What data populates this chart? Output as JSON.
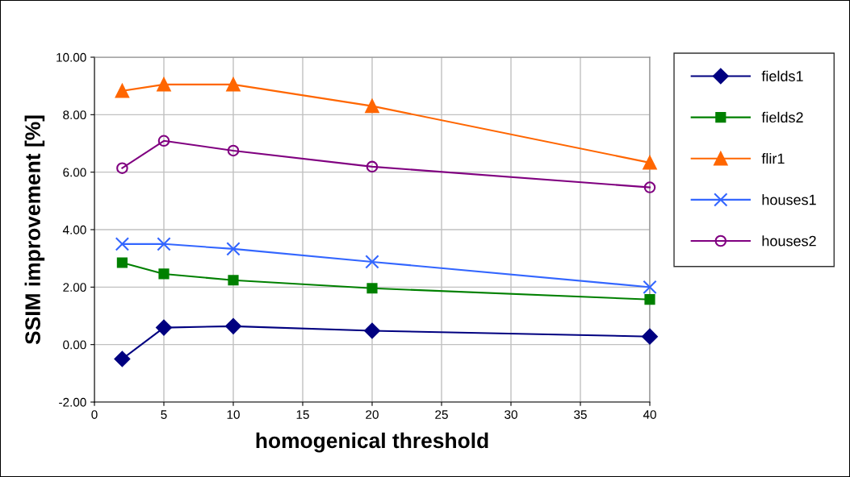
{
  "chart_data": {
    "type": "line",
    "xlabel": "homogenical threshold",
    "ylabel": "SSIM improvement [%]",
    "x": [
      2,
      5,
      10,
      20,
      40
    ],
    "series": [
      {
        "name": "fields1",
        "color": "#000080",
        "marker": "diamond",
        "values": [
          -0.5,
          0.59,
          0.64,
          0.48,
          0.28
        ]
      },
      {
        "name": "fields2",
        "color": "#008000",
        "marker": "square",
        "values": [
          2.85,
          2.46,
          2.24,
          1.96,
          1.57
        ]
      },
      {
        "name": "flir1",
        "color": "#ff6600",
        "marker": "triangle",
        "values": [
          8.83,
          9.05,
          9.05,
          8.3,
          6.33
        ]
      },
      {
        "name": "houses1",
        "color": "#3366ff",
        "marker": "cross",
        "values": [
          3.5,
          3.5,
          3.33,
          2.88,
          2.0
        ]
      },
      {
        "name": "houses2",
        "color": "#800080",
        "marker": "circle",
        "values": [
          6.14,
          7.09,
          6.75,
          6.19,
          5.47
        ]
      }
    ],
    "xlim": [
      0,
      40
    ],
    "xticks": [
      0,
      5,
      10,
      15,
      20,
      25,
      30,
      35,
      40
    ],
    "ylim": [
      -2,
      10
    ],
    "yticks": [
      {
        "value": -2,
        "label": "-2.00"
      },
      {
        "value": 0,
        "label": "0.00"
      },
      {
        "value": 2,
        "label": "2.00"
      },
      {
        "value": 4,
        "label": "4.00"
      },
      {
        "value": 6,
        "label": "6.00"
      },
      {
        "value": 8,
        "label": "8.00"
      },
      {
        "value": 10,
        "label": "10.00"
      }
    ],
    "grid": true,
    "legend": "right"
  }
}
